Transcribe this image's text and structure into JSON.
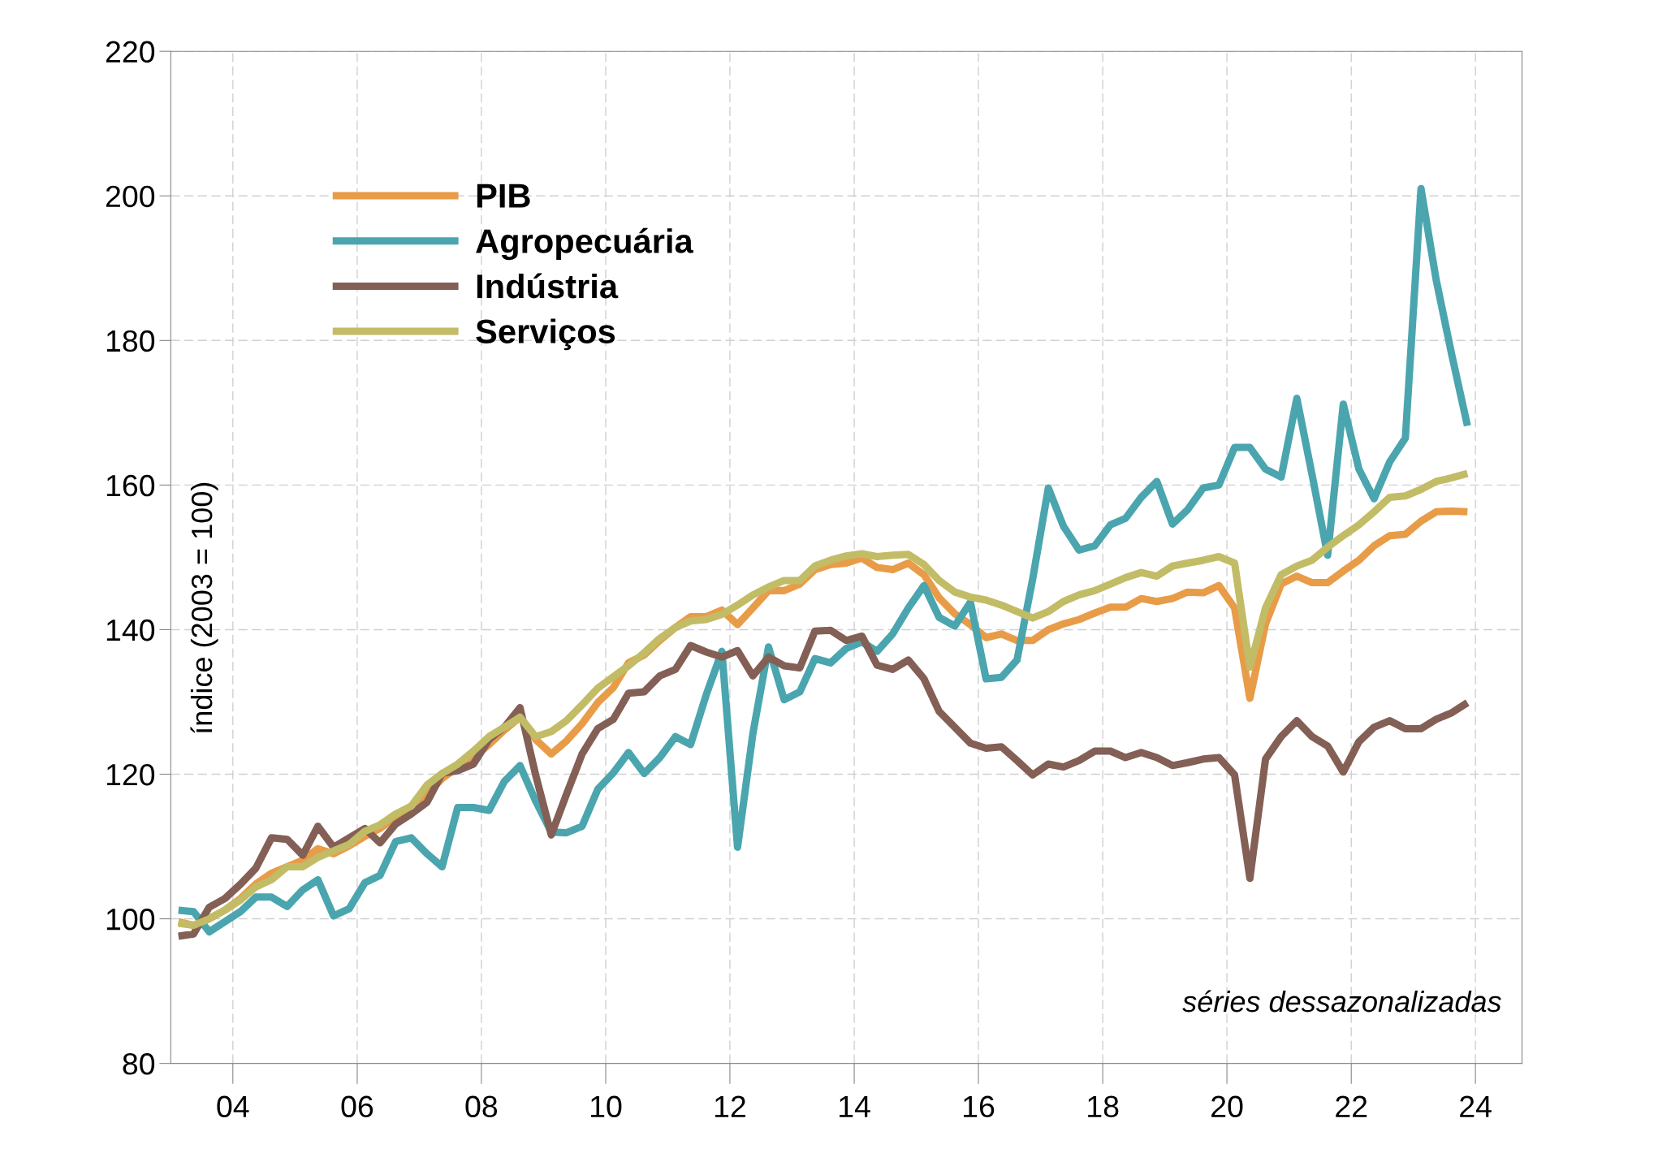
{
  "chart_data": {
    "type": "line",
    "ylabel": "índice (2003 = 100)",
    "annotations": [
      "séries dessazonalizadas"
    ],
    "x": [
      "2003-02-15",
      "2003-05-15",
      "2003-08-15",
      "2003-11-15",
      "2004-02-15",
      "2004-05-15",
      "2004-08-15",
      "2004-11-15",
      "2005-02-15",
      "2005-05-15",
      "2005-08-15",
      "2005-11-15",
      "2006-02-15",
      "2006-05-15",
      "2006-08-15",
      "2006-11-15",
      "2007-02-15",
      "2007-05-15",
      "2007-08-15",
      "2007-11-15",
      "2008-02-15",
      "2008-05-15",
      "2008-08-15",
      "2008-11-15",
      "2009-02-15",
      "2009-05-15",
      "2009-08-15",
      "2009-11-15",
      "2010-02-15",
      "2010-05-15",
      "2010-08-15",
      "2010-11-15",
      "2011-02-15",
      "2011-05-15",
      "2011-08-15",
      "2011-11-15",
      "2012-02-15",
      "2012-05-15",
      "2012-08-15",
      "2012-11-15",
      "2013-02-15",
      "2013-05-15",
      "2013-08-15",
      "2013-11-15",
      "2014-02-15",
      "2014-05-15",
      "2014-08-15",
      "2014-11-15",
      "2015-02-15",
      "2015-05-15",
      "2015-08-15",
      "2015-11-15",
      "2016-02-15",
      "2016-05-15",
      "2016-08-15",
      "2016-11-15",
      "2017-02-15",
      "2017-05-15",
      "2017-08-15",
      "2017-11-15",
      "2018-02-15",
      "2018-05-15",
      "2018-08-15",
      "2018-11-15",
      "2019-02-15",
      "2019-05-15",
      "2019-08-15",
      "2019-11-15",
      "2020-02-15",
      "2020-05-15",
      "2020-08-15",
      "2020-11-15",
      "2021-02-15",
      "2021-05-15",
      "2021-08-15",
      "2021-11-15",
      "2022-02-15",
      "2022-05-15",
      "2022-08-15",
      "2022-11-15",
      "2023-02-15",
      "2023-05-15",
      "2023-08-15",
      "2023-11-15"
    ],
    "series": [
      {
        "name": "PIB",
        "color": "#e89c48",
        "values": [
          99.6,
          99.1,
          100,
          101.2,
          102.8,
          104.8,
          106.3,
          107.2,
          108.1,
          109.7,
          109,
          110.1,
          111.4,
          112.5,
          114.1,
          115.6,
          117.2,
          119.4,
          121,
          122.3,
          124.1,
          126.1,
          127.9,
          124.8,
          122.8,
          124.6,
          127,
          129.9,
          132,
          135.4,
          136.5,
          138.5,
          140.3,
          141.8,
          141.8,
          142.7,
          140.7,
          143,
          145.4,
          145.4,
          146.3,
          148.3,
          149,
          149.2,
          149.9,
          148.6,
          148.3,
          149.2,
          147.6,
          144.4,
          142.2,
          140.7,
          138.9,
          139.4,
          138.5,
          138.5,
          140,
          140.8,
          141.4,
          142.3,
          143.1,
          143.1,
          144.3,
          143.9,
          144.3,
          145.2,
          145.1,
          146.1,
          143,
          130.5,
          140.8,
          146.3,
          147.4,
          146.5,
          146.5,
          148.1,
          149.6,
          151.6,
          153,
          153.2,
          155,
          156.3,
          156.4,
          156.3
        ]
      },
      {
        "name": "Agropecuária",
        "color": "#4aa5ae",
        "values": [
          101.2,
          101,
          98.2,
          99.6,
          101,
          103,
          103,
          101.7,
          104,
          105.4,
          100.4,
          101.4,
          105,
          106,
          110.7,
          111.2,
          109,
          107.2,
          115.4,
          115.4,
          115,
          119,
          121.2,
          116.3,
          112,
          111.9,
          112.8,
          117.9,
          120.2,
          123,
          120.1,
          122.3,
          125.2,
          124.1,
          131,
          137,
          109.9,
          125.6,
          137.6,
          130.3,
          131.4,
          136,
          135.4,
          137.4,
          138.3,
          137,
          139.4,
          143,
          146.1,
          141.7,
          140.5,
          143.8,
          133.2,
          133.4,
          135.8,
          147,
          159.6,
          154.3,
          151,
          151.6,
          154.5,
          155.4,
          158.3,
          160.5,
          154.6,
          156.6,
          159.6,
          160,
          165.2,
          165.2,
          162.2,
          161.1,
          172,
          161.5,
          150.3,
          171.2,
          162.2,
          158.1,
          163.2,
          166.5,
          201,
          188.4,
          178,
          168.2
        ]
      },
      {
        "name": "Indústria",
        "color": "#835f55",
        "values": [
          97.6,
          97.9,
          101.6,
          102.8,
          104.8,
          107,
          111.2,
          111,
          108.8,
          112.8,
          109.9,
          111.2,
          112.5,
          110.5,
          113.1,
          114.5,
          116.1,
          120.1,
          120.5,
          121.4,
          124.8,
          126.5,
          129.2,
          119.9,
          111.6,
          117.2,
          122.8,
          126.3,
          127.6,
          131.2,
          131.4,
          133.6,
          134.5,
          137.8,
          136.9,
          136.2,
          137.1,
          133.6,
          136.2,
          135,
          134.7,
          139.8,
          139.9,
          138.5,
          139.1,
          135.1,
          134.5,
          135.8,
          133.2,
          128.7,
          126.5,
          124.3,
          123.6,
          123.8,
          121.9,
          119.9,
          121.4,
          121,
          121.9,
          123.2,
          123.2,
          122.3,
          123,
          122.3,
          121.2,
          121.6,
          122.1,
          122.3,
          119.9,
          105.6,
          122.1,
          125.2,
          127.4,
          125.2,
          123.9,
          120.3,
          124.5,
          126.5,
          127.4,
          126.3,
          126.3,
          127.6,
          128.5,
          129.9
        ]
      },
      {
        "name": "Serviços",
        "color": "#c2bc66",
        "values": [
          99.4,
          99.1,
          100,
          101.2,
          102.6,
          104.4,
          105.4,
          107.2,
          107.2,
          108.5,
          109.4,
          110.3,
          112.1,
          113,
          114.5,
          115.6,
          118.5,
          120.1,
          121.4,
          123.2,
          125.2,
          126.5,
          127.9,
          125.2,
          125.9,
          127.4,
          129.6,
          131.9,
          133.5,
          135,
          136.8,
          138.8,
          140.3,
          141.2,
          141.4,
          142.1,
          143.4,
          144.8,
          145.9,
          146.8,
          146.8,
          148.8,
          149.6,
          150.2,
          150.5,
          150.1,
          150.3,
          150.4,
          149,
          146.8,
          145.2,
          144.5,
          144.1,
          143.4,
          142.5,
          141.6,
          142.5,
          143.9,
          144.8,
          145.4,
          146.3,
          147.2,
          147.9,
          147.4,
          148.8,
          149.2,
          149.6,
          150.1,
          149.2,
          134.8,
          143,
          147.6,
          148.8,
          149.6,
          151.4,
          153,
          154.5,
          156.3,
          158.3,
          158.5,
          159.4,
          160.5,
          161,
          161.6
        ]
      }
    ],
    "xlim": [
      "2003-01-01",
      "2024-10-01"
    ],
    "xticks": [
      {
        "value": "2004-01-01",
        "label": "04"
      },
      {
        "value": "2006-01-01",
        "label": "06"
      },
      {
        "value": "2008-01-01",
        "label": "08"
      },
      {
        "value": "2010-01-01",
        "label": "10"
      },
      {
        "value": "2012-01-01",
        "label": "12"
      },
      {
        "value": "2014-01-01",
        "label": "14"
      },
      {
        "value": "2016-01-01",
        "label": "16"
      },
      {
        "value": "2018-01-01",
        "label": "18"
      },
      {
        "value": "2020-01-01",
        "label": "20"
      },
      {
        "value": "2022-01-01",
        "label": "22"
      },
      {
        "value": "2024-01-01",
        "label": "24"
      }
    ],
    "ylim": [
      80,
      220
    ],
    "yticks": [
      80,
      100,
      120,
      140,
      160,
      180,
      200,
      220
    ],
    "grid": true,
    "legend": "top left",
    "line_style": "solid",
    "marker": "none"
  }
}
